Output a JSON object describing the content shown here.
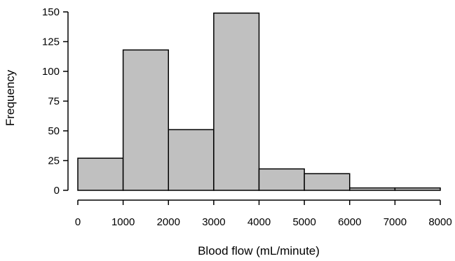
{
  "chart_data": {
    "type": "bar",
    "subtype": "histogram",
    "bins": [
      {
        "start": 0,
        "end": 1000,
        "value": 27
      },
      {
        "start": 1000,
        "end": 2000,
        "value": 118
      },
      {
        "start": 2000,
        "end": 3000,
        "value": 51
      },
      {
        "start": 3000,
        "end": 4000,
        "value": 149
      },
      {
        "start": 4000,
        "end": 5000,
        "value": 18
      },
      {
        "start": 5000,
        "end": 6000,
        "value": 14
      },
      {
        "start": 6000,
        "end": 7000,
        "value": 2
      },
      {
        "start": 7000,
        "end": 8000,
        "value": 2
      }
    ],
    "xlabel": "Blood flow (mL/minute)",
    "ylabel": "Frequency",
    "xlim": [
      0,
      8000
    ],
    "ylim": [
      0,
      150
    ],
    "xticks": [
      "0",
      "1000",
      "2000",
      "3000",
      "4000",
      "5000",
      "6000",
      "7000",
      "8000"
    ],
    "yticks": [
      "0",
      "25",
      "50",
      "75",
      "100",
      "125",
      "150"
    ],
    "bar_color": "#c0c0c0",
    "edge_color": "#000000",
    "grid": false
  }
}
